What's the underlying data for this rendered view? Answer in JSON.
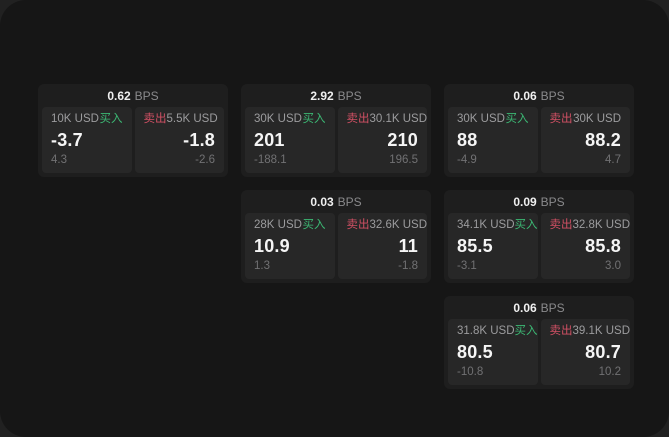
{
  "labels": {
    "buy": "买入",
    "sell": "卖出",
    "bps_unit": "BPS"
  },
  "colors": {
    "buy": "#3cb874",
    "sell": "#d25064",
    "window_bg": "#161616",
    "card_bg": "#1e1e1e",
    "panel_bg": "#272727"
  },
  "cards": [
    {
      "bps": "0.62",
      "grid": {
        "row": 0,
        "col": 0
      },
      "buy": {
        "amount": "10K USD",
        "price": "-3.7",
        "change": "4.3"
      },
      "sell": {
        "amount": "5.5K USD",
        "price": "-1.8",
        "change": "-2.6"
      }
    },
    {
      "bps": "2.92",
      "grid": {
        "row": 0,
        "col": 1
      },
      "buy": {
        "amount": "30K USD",
        "price": "201",
        "change": "-188.1"
      },
      "sell": {
        "amount": "30.1K USD",
        "price": "210",
        "change": "196.5"
      }
    },
    {
      "bps": "0.06",
      "grid": {
        "row": 0,
        "col": 2
      },
      "buy": {
        "amount": "30K USD",
        "price": "88",
        "change": "-4.9"
      },
      "sell": {
        "amount": "30K USD",
        "price": "88.2",
        "change": "4.7"
      }
    },
    {
      "bps": "0.03",
      "grid": {
        "row": 1,
        "col": 1
      },
      "buy": {
        "amount": "28K USD",
        "price": "10.9",
        "change": "1.3"
      },
      "sell": {
        "amount": "32.6K USD",
        "price": "11",
        "change": "-1.8"
      }
    },
    {
      "bps": "0.09",
      "grid": {
        "row": 1,
        "col": 2
      },
      "buy": {
        "amount": "34.1K USD",
        "price": "85.5",
        "change": "-3.1"
      },
      "sell": {
        "amount": "32.8K USD",
        "price": "85.8",
        "change": "3.0"
      }
    },
    {
      "bps": "0.06",
      "grid": {
        "row": 2,
        "col": 2
      },
      "buy": {
        "amount": "31.8K USD",
        "price": "80.5",
        "change": "-10.8"
      },
      "sell": {
        "amount": "39.1K USD",
        "price": "80.7",
        "change": "10.2"
      }
    }
  ]
}
